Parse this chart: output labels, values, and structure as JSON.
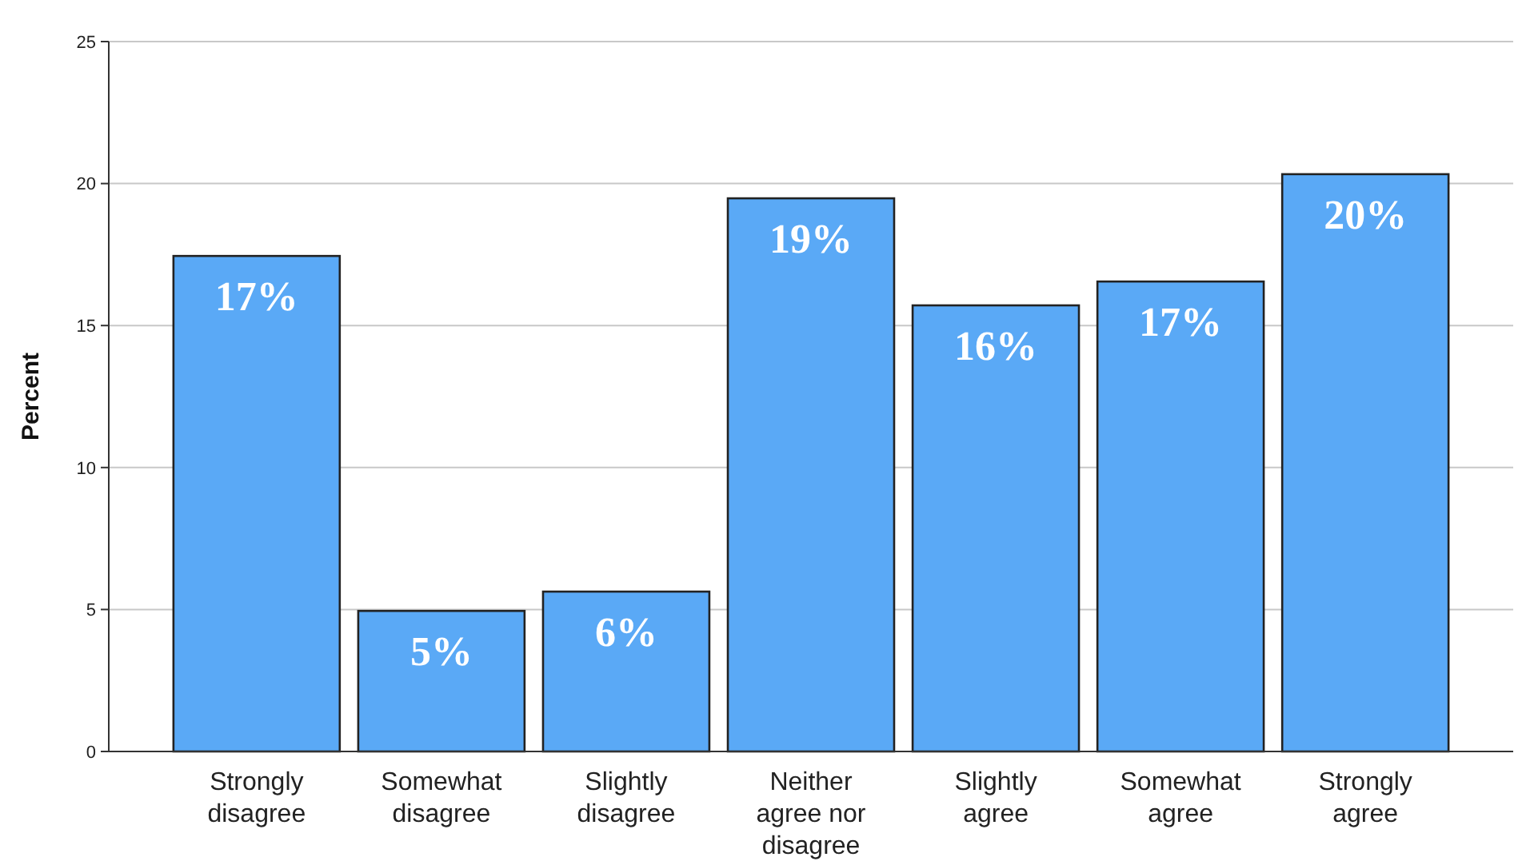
{
  "chart_data": {
    "type": "bar",
    "ylabel": "Percent",
    "categories": [
      "Strongly disagree",
      "Somewhat disagree",
      "Slightly disagree",
      "Neither agree nor disagree",
      "Slightly agree",
      "Somewhat agree",
      "Strongly agree"
    ],
    "values": [
      17.45,
      4.95,
      5.63,
      19.48,
      15.71,
      16.55,
      20.33
    ],
    "value_labels": [
      "17%",
      "5%",
      "6%",
      "19%",
      "16%",
      "17%",
      "20%"
    ],
    "color": "#5aa9f6",
    "ylim": [
      0,
      25
    ],
    "yticks": [
      0,
      5,
      10,
      15,
      20,
      25
    ],
    "grid": "y"
  }
}
